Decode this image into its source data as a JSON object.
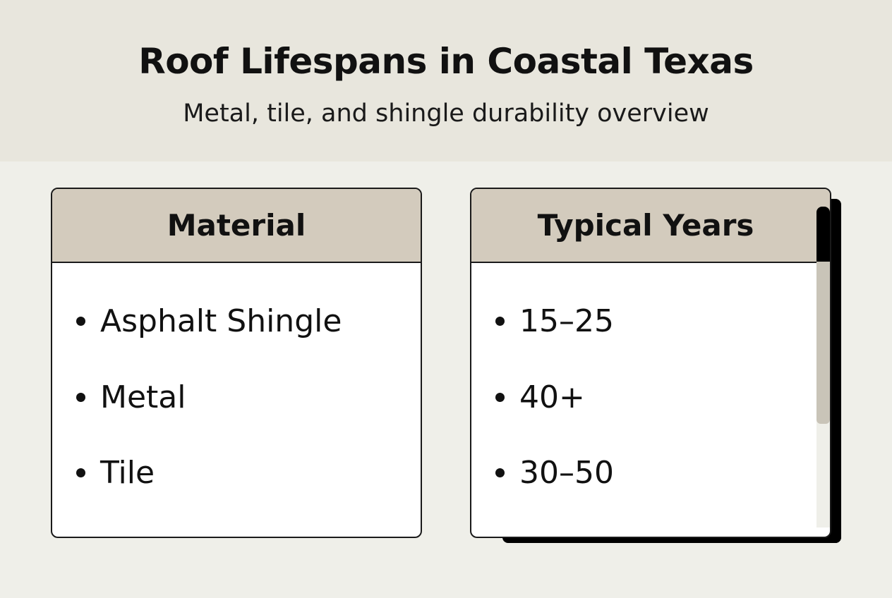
{
  "header": {
    "title": "Roof Lifespans in Coastal Texas",
    "subtitle": "Metal, tile, and shingle durability overview"
  },
  "material_card": {
    "heading": "Material",
    "items": [
      "Asphalt Shingle",
      "Metal",
      "Tile"
    ]
  },
  "years_card": {
    "heading": "Typical Years",
    "items": [
      "15–25",
      "40+",
      "30–50"
    ],
    "scroll_position_percent": 0
  },
  "colors": {
    "header_bg": "#e8e6dd",
    "card_head_bg": "#d3cbbd",
    "page_bg": "#efefe9",
    "scroll_thumb": "#c9c4b8"
  }
}
